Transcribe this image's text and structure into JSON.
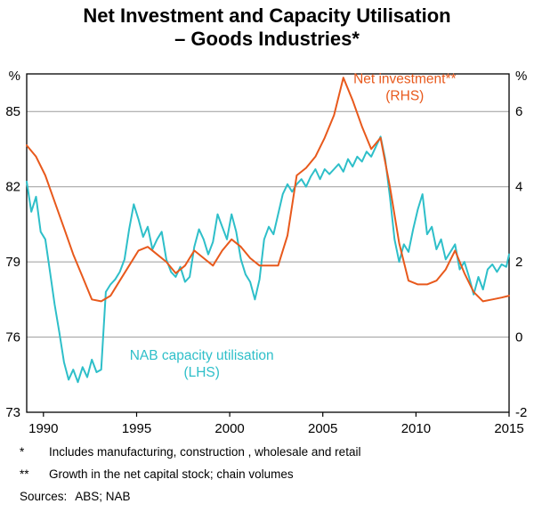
{
  "title": {
    "line1": "Net Investment and Capacity Utilisation",
    "line2": "– Goods Industries*"
  },
  "chart_data": {
    "type": "line",
    "title": "Net Investment and Capacity Utilisation – Goods Industries",
    "grid": true,
    "grid_color": "#9c9c9c",
    "frame_color": "#000000",
    "left_axis": {
      "unit": "%",
      "ticks": [
        73,
        76,
        79,
        82,
        85
      ],
      "range": [
        73,
        86.5
      ]
    },
    "right_axis": {
      "unit": "%",
      "ticks": [
        -2,
        0,
        2,
        4,
        6
      ],
      "range": [
        -2,
        7
      ]
    },
    "x_axis": {
      "ticks": [
        1990,
        1995,
        2000,
        2005,
        2010,
        2015
      ],
      "range": [
        1989.1,
        2015
      ]
    },
    "series": [
      {
        "name": "NAB capacity utilisation",
        "axis_side": "left",
        "color": "#2ebfc9",
        "points": [
          [
            1989.1,
            82.2
          ],
          [
            1989.35,
            81.0
          ],
          [
            1989.6,
            81.6
          ],
          [
            1989.85,
            80.2
          ],
          [
            1990.1,
            79.9
          ],
          [
            1990.35,
            78.6
          ],
          [
            1990.6,
            77.3
          ],
          [
            1990.85,
            76.2
          ],
          [
            1991.1,
            75.0
          ],
          [
            1991.35,
            74.3
          ],
          [
            1991.6,
            74.7
          ],
          [
            1991.85,
            74.2
          ],
          [
            1992.1,
            74.8
          ],
          [
            1992.35,
            74.4
          ],
          [
            1992.6,
            75.1
          ],
          [
            1992.85,
            74.6
          ],
          [
            1993.1,
            74.7
          ],
          [
            1993.35,
            77.8
          ],
          [
            1993.6,
            78.1
          ],
          [
            1993.85,
            78.3
          ],
          [
            1994.1,
            78.6
          ],
          [
            1994.35,
            79.1
          ],
          [
            1994.6,
            80.3
          ],
          [
            1994.85,
            81.3
          ],
          [
            1995.1,
            80.7
          ],
          [
            1995.35,
            80.0
          ],
          [
            1995.6,
            80.4
          ],
          [
            1995.85,
            79.5
          ],
          [
            1996.1,
            79.9
          ],
          [
            1996.35,
            80.2
          ],
          [
            1996.6,
            79.1
          ],
          [
            1996.85,
            78.6
          ],
          [
            1997.1,
            78.4
          ],
          [
            1997.35,
            78.8
          ],
          [
            1997.6,
            78.2
          ],
          [
            1997.85,
            78.4
          ],
          [
            1998.1,
            79.6
          ],
          [
            1998.35,
            80.3
          ],
          [
            1998.6,
            79.9
          ],
          [
            1998.85,
            79.3
          ],
          [
            1999.1,
            79.8
          ],
          [
            1999.35,
            80.9
          ],
          [
            1999.6,
            80.4
          ],
          [
            1999.85,
            79.9
          ],
          [
            2000.1,
            80.9
          ],
          [
            2000.35,
            80.2
          ],
          [
            2000.6,
            79.1
          ],
          [
            2000.85,
            78.5
          ],
          [
            2001.1,
            78.2
          ],
          [
            2001.35,
            77.5
          ],
          [
            2001.6,
            78.3
          ],
          [
            2001.85,
            79.9
          ],
          [
            2002.1,
            80.4
          ],
          [
            2002.35,
            80.1
          ],
          [
            2002.6,
            80.9
          ],
          [
            2002.85,
            81.7
          ],
          [
            2003.1,
            82.1
          ],
          [
            2003.35,
            81.8
          ],
          [
            2003.6,
            82.1
          ],
          [
            2003.85,
            82.3
          ],
          [
            2004.1,
            82.0
          ],
          [
            2004.35,
            82.4
          ],
          [
            2004.6,
            82.7
          ],
          [
            2004.85,
            82.3
          ],
          [
            2005.1,
            82.7
          ],
          [
            2005.35,
            82.5
          ],
          [
            2005.6,
            82.7
          ],
          [
            2005.85,
            82.9
          ],
          [
            2006.1,
            82.6
          ],
          [
            2006.35,
            83.1
          ],
          [
            2006.6,
            82.8
          ],
          [
            2006.85,
            83.2
          ],
          [
            2007.1,
            83.0
          ],
          [
            2007.35,
            83.4
          ],
          [
            2007.6,
            83.2
          ],
          [
            2007.85,
            83.6
          ],
          [
            2008.1,
            84.0
          ],
          [
            2008.35,
            83.1
          ],
          [
            2008.6,
            81.6
          ],
          [
            2008.85,
            79.9
          ],
          [
            2009.1,
            79.0
          ],
          [
            2009.35,
            79.7
          ],
          [
            2009.6,
            79.4
          ],
          [
            2009.85,
            80.3
          ],
          [
            2010.1,
            81.1
          ],
          [
            2010.35,
            81.7
          ],
          [
            2010.6,
            80.1
          ],
          [
            2010.85,
            80.4
          ],
          [
            2011.1,
            79.5
          ],
          [
            2011.35,
            79.9
          ],
          [
            2011.6,
            79.1
          ],
          [
            2011.85,
            79.4
          ],
          [
            2012.1,
            79.7
          ],
          [
            2012.35,
            78.7
          ],
          [
            2012.6,
            79.0
          ],
          [
            2012.85,
            78.4
          ],
          [
            2013.1,
            77.7
          ],
          [
            2013.35,
            78.4
          ],
          [
            2013.6,
            77.9
          ],
          [
            2013.85,
            78.7
          ],
          [
            2014.1,
            78.9
          ],
          [
            2014.35,
            78.6
          ],
          [
            2014.6,
            78.9
          ],
          [
            2014.85,
            78.8
          ],
          [
            2015.0,
            79.3
          ]
        ]
      },
      {
        "name": "Net investment",
        "axis_side": "right",
        "color": "#e8591c",
        "points": [
          [
            1989.1,
            5.1
          ],
          [
            1989.6,
            4.8
          ],
          [
            1990.1,
            4.3
          ],
          [
            1990.6,
            3.6
          ],
          [
            1991.1,
            2.9
          ],
          [
            1991.6,
            2.2
          ],
          [
            1992.1,
            1.6
          ],
          [
            1992.6,
            1.0
          ],
          [
            1993.1,
            0.95
          ],
          [
            1993.6,
            1.1
          ],
          [
            1994.1,
            1.5
          ],
          [
            1994.6,
            1.9
          ],
          [
            1995.1,
            2.3
          ],
          [
            1995.6,
            2.4
          ],
          [
            1996.1,
            2.2
          ],
          [
            1996.6,
            2.0
          ],
          [
            1997.1,
            1.7
          ],
          [
            1997.6,
            1.9
          ],
          [
            1998.1,
            2.3
          ],
          [
            1998.6,
            2.1
          ],
          [
            1999.1,
            1.9
          ],
          [
            1999.6,
            2.3
          ],
          [
            2000.1,
            2.6
          ],
          [
            2000.6,
            2.4
          ],
          [
            2001.1,
            2.1
          ],
          [
            2001.6,
            1.9
          ],
          [
            2002.1,
            1.9
          ],
          [
            2002.6,
            1.9
          ],
          [
            2003.1,
            2.7
          ],
          [
            2003.6,
            4.3
          ],
          [
            2004.1,
            4.5
          ],
          [
            2004.6,
            4.8
          ],
          [
            2005.1,
            5.3
          ],
          [
            2005.6,
            5.9
          ],
          [
            2006.1,
            6.9
          ],
          [
            2006.6,
            6.3
          ],
          [
            2007.1,
            5.6
          ],
          [
            2007.6,
            5.0
          ],
          [
            2008.1,
            5.3
          ],
          [
            2008.6,
            4.0
          ],
          [
            2009.1,
            2.5
          ],
          [
            2009.6,
            1.5
          ],
          [
            2010.1,
            1.4
          ],
          [
            2010.6,
            1.4
          ],
          [
            2011.1,
            1.5
          ],
          [
            2011.6,
            1.8
          ],
          [
            2012.1,
            2.3
          ],
          [
            2012.6,
            1.7
          ],
          [
            2013.1,
            1.2
          ],
          [
            2013.6,
            0.95
          ],
          [
            2014.1,
            1.0
          ],
          [
            2014.6,
            1.05
          ],
          [
            2015.0,
            1.1
          ]
        ]
      }
    ],
    "annotations": [
      {
        "id": "net-investment-label",
        "lines": [
          "Net investment**",
          "(RHS)"
        ],
        "color": "#e8591c",
        "x": 2009.4,
        "y": 6.75,
        "axis_side": "right"
      },
      {
        "id": "capacity-utilisation-label",
        "lines": [
          "NAB capacity utilisation",
          "(LHS)"
        ],
        "color": "#2ebfc9",
        "x": 1998.5,
        "y": 75.1,
        "axis_side": "left"
      }
    ]
  },
  "footnotes": [
    {
      "marker": "*",
      "text": "Includes manufacturing, construction , wholesale and retail"
    },
    {
      "marker": "**",
      "text": "Growth in the net capital stock; chain volumes"
    }
  ],
  "sources": {
    "label": "Sources:",
    "text": "ABS; NAB"
  }
}
